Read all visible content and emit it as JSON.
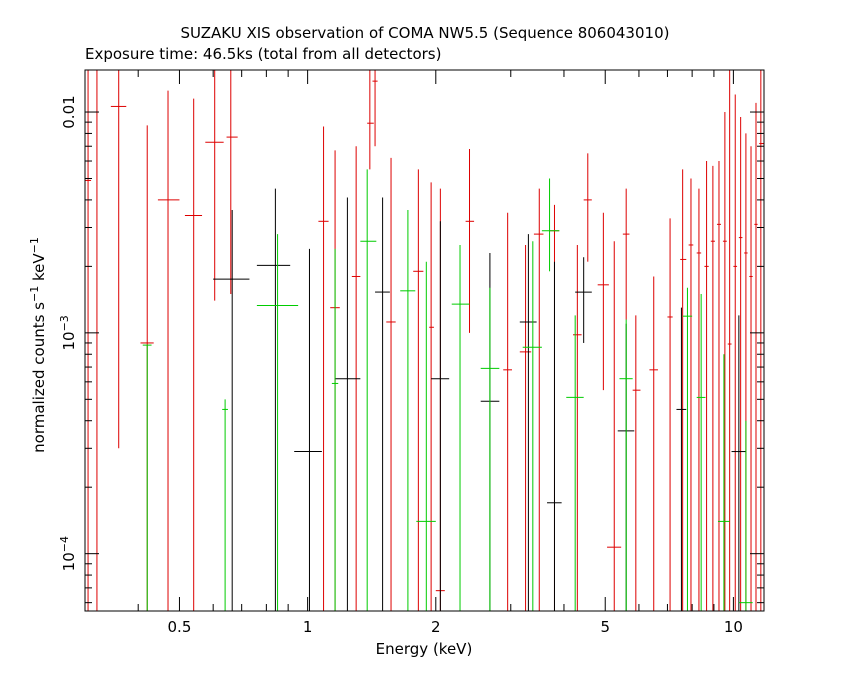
{
  "chart_data": {
    "type": "scatter",
    "title": "SUZAKU XIS observation of COMA NW5.5 (Sequence 806043010)",
    "subtitle": "Exposure time: 46.5ks (total from all detectors)",
    "xlabel": "Energy (keV)",
    "ylabel": "normalized counts s",
    "ylabel_sup1": "−1",
    "ylabel_mid": " keV",
    "ylabel_sup2": "−1",
    "x_scale": "log",
    "y_scale": "log",
    "xlim": [
      0.3,
      11.8
    ],
    "ylim": [
      5.5e-05,
      0.0155
    ],
    "x_ticks": [
      {
        "value": 0.5,
        "label": "0.5"
      },
      {
        "value": 1,
        "label": "1"
      },
      {
        "value": 2,
        "label": "2"
      },
      {
        "value": 5,
        "label": "5"
      },
      {
        "value": 10,
        "label": "10"
      }
    ],
    "y_ticks": [
      {
        "value": 0.0001,
        "label": "10",
        "sup": "−4"
      },
      {
        "value": 0.001,
        "label": "10",
        "sup": "−3"
      },
      {
        "value": 0.01,
        "label": "0.01",
        "sup": ""
      }
    ],
    "legend": "none",
    "grid": false,
    "series": [
      {
        "color": "#dd0000",
        "points": [
          {
            "x": 0.305,
            "xlo": 0.3,
            "xhi": 0.31,
            "y": 0.0049,
            "ylo": 5.5e-05,
            "yhi": 0.0155
          },
          {
            "x": 0.32,
            "xlo": 0.31,
            "xhi": 0.328,
            "y": 0.0155,
            "ylo": 5.5e-05,
            "yhi": 0.0155
          },
          {
            "x": 0.36,
            "xlo": 0.345,
            "xhi": 0.375,
            "y": 0.0106,
            "ylo": 0.0003,
            "yhi": 0.0155
          },
          {
            "x": 0.42,
            "xlo": 0.405,
            "xhi": 0.435,
            "y": 0.0009,
            "ylo": 5.5e-05,
            "yhi": 0.0087
          },
          {
            "x": 0.47,
            "xlo": 0.445,
            "xhi": 0.5,
            "y": 0.004,
            "ylo": 5.5e-05,
            "yhi": 0.0125
          },
          {
            "x": 0.54,
            "xlo": 0.515,
            "xhi": 0.565,
            "y": 0.0034,
            "ylo": 5.5e-05,
            "yhi": 0.0115
          },
          {
            "x": 0.605,
            "xlo": 0.575,
            "xhi": 0.635,
            "y": 0.0073,
            "ylo": 0.0014,
            "yhi": 0.0155
          },
          {
            "x": 0.66,
            "xlo": 0.645,
            "xhi": 0.685,
            "y": 0.0077,
            "ylo": 0.0015,
            "yhi": 0.0155
          },
          {
            "x": 1.09,
            "xlo": 1.06,
            "xhi": 1.12,
            "y": 0.0032,
            "ylo": 5.5e-05,
            "yhi": 0.0086
          },
          {
            "x": 1.16,
            "xlo": 1.13,
            "xhi": 1.19,
            "y": 0.0013,
            "ylo": 5.5e-05,
            "yhi": 0.0067
          },
          {
            "x": 1.3,
            "xlo": 1.27,
            "xhi": 1.33,
            "y": 0.0018,
            "ylo": 5.5e-05,
            "yhi": 0.007
          },
          {
            "x": 1.4,
            "xlo": 1.38,
            "xhi": 1.43,
            "y": 0.0089,
            "ylo": 0.0055,
            "yhi": 0.0155
          },
          {
            "x": 1.44,
            "xlo": 1.42,
            "xhi": 1.46,
            "y": 0.0138,
            "ylo": 0.007,
            "yhi": 0.0155
          },
          {
            "x": 1.57,
            "xlo": 1.53,
            "xhi": 1.61,
            "y": 0.00112,
            "ylo": 5.5e-05,
            "yhi": 0.0062
          },
          {
            "x": 1.82,
            "xlo": 1.77,
            "xhi": 1.87,
            "y": 0.0019,
            "ylo": 5.5e-05,
            "yhi": 0.0055
          },
          {
            "x": 1.95,
            "xlo": 1.93,
            "xhi": 1.98,
            "y": 0.00106,
            "ylo": 5.5e-05,
            "yhi": 0.0048
          },
          {
            "x": 2.05,
            "xlo": 2.0,
            "xhi": 2.1,
            "y": 6.8e-05,
            "ylo": 5.5e-05,
            "yhi": 0.0045
          },
          {
            "x": 2.4,
            "xlo": 2.35,
            "xhi": 2.46,
            "y": 0.0032,
            "ylo": 0.001,
            "yhi": 0.0068
          },
          {
            "x": 2.95,
            "xlo": 2.88,
            "xhi": 3.02,
            "y": 0.00068,
            "ylo": 5.5e-05,
            "yhi": 0.0035
          },
          {
            "x": 3.25,
            "xlo": 3.15,
            "xhi": 3.35,
            "y": 0.00082,
            "ylo": 5.5e-05,
            "yhi": 0.0025
          },
          {
            "x": 3.5,
            "xlo": 3.4,
            "xhi": 3.58,
            "y": 0.0028,
            "ylo": 5.5e-05,
            "yhi": 0.0045
          },
          {
            "x": 3.8,
            "xlo": 3.7,
            "xhi": 3.9,
            "y": 0.0029,
            "ylo": 5.5e-05,
            "yhi": 0.0038
          },
          {
            "x": 4.3,
            "xlo": 4.2,
            "xhi": 4.4,
            "y": 0.00098,
            "ylo": 5.5e-05,
            "yhi": 0.0025
          },
          {
            "x": 4.55,
            "xlo": 4.45,
            "xhi": 4.65,
            "y": 0.004,
            "ylo": 0.0021,
            "yhi": 0.0065
          },
          {
            "x": 4.95,
            "xlo": 4.8,
            "xhi": 5.1,
            "y": 0.00165,
            "ylo": 0.00055,
            "yhi": 0.0035
          },
          {
            "x": 5.25,
            "xlo": 5.05,
            "xhi": 5.45,
            "y": 0.000107,
            "ylo": 5.5e-05,
            "yhi": 0.0026
          },
          {
            "x": 5.6,
            "xlo": 5.5,
            "xhi": 5.7,
            "y": 0.0028,
            "ylo": 0.00115,
            "yhi": 0.0045
          },
          {
            "x": 5.9,
            "xlo": 5.8,
            "xhi": 6.05,
            "y": 0.00055,
            "ylo": 5.5e-05,
            "yhi": 0.0012
          },
          {
            "x": 6.5,
            "xlo": 6.35,
            "xhi": 6.65,
            "y": 0.00068,
            "ylo": 5.5e-05,
            "yhi": 0.0018
          },
          {
            "x": 7.1,
            "xlo": 7.0,
            "xhi": 7.2,
            "y": 0.00118,
            "ylo": 5.5e-05,
            "yhi": 0.0033
          },
          {
            "x": 7.6,
            "xlo": 7.5,
            "xhi": 7.75,
            "y": 0.00215,
            "ylo": 5.5e-05,
            "yhi": 0.0055
          },
          {
            "x": 7.95,
            "xlo": 7.85,
            "xhi": 8.05,
            "y": 0.0025,
            "ylo": 5.5e-05,
            "yhi": 0.005
          },
          {
            "x": 8.3,
            "xlo": 8.2,
            "xhi": 8.4,
            "y": 0.0023,
            "ylo": 5.5e-05,
            "yhi": 0.0045
          },
          {
            "x": 8.65,
            "xlo": 8.55,
            "xhi": 8.75,
            "y": 0.002,
            "ylo": 5.5e-05,
            "yhi": 0.006
          },
          {
            "x": 8.95,
            "xlo": 8.85,
            "xhi": 9.05,
            "y": 0.0026,
            "ylo": 5.5e-05,
            "yhi": 0.0057
          },
          {
            "x": 9.25,
            "xlo": 9.15,
            "xhi": 9.35,
            "y": 0.0031,
            "ylo": 5.5e-05,
            "yhi": 0.006
          },
          {
            "x": 9.55,
            "xlo": 9.45,
            "xhi": 9.65,
            "y": 0.0026,
            "ylo": 5.5e-05,
            "yhi": 0.01
          },
          {
            "x": 9.8,
            "xlo": 9.7,
            "xhi": 9.9,
            "y": 0.00089,
            "ylo": 5.5e-05,
            "yhi": 0.016
          },
          {
            "x": 10.1,
            "xlo": 10.0,
            "xhi": 10.2,
            "y": 0.002,
            "ylo": 5.5e-05,
            "yhi": 0.012
          },
          {
            "x": 10.4,
            "xlo": 10.3,
            "xhi": 10.5,
            "y": 0.0027,
            "ylo": 5.5e-05,
            "yhi": 0.0095
          },
          {
            "x": 10.7,
            "xlo": 10.6,
            "xhi": 10.8,
            "y": 0.0023,
            "ylo": 5.5e-05,
            "yhi": 0.008
          },
          {
            "x": 11.0,
            "xlo": 10.9,
            "xhi": 11.1,
            "y": 0.0018,
            "ylo": 5.5e-05,
            "yhi": 0.007
          },
          {
            "x": 11.3,
            "xlo": 11.2,
            "xhi": 11.4,
            "y": 0.0031,
            "ylo": 5.5e-05,
            "yhi": 0.011
          },
          {
            "x": 11.6,
            "xlo": 11.5,
            "xhi": 11.8,
            "y": 0.0072,
            "ylo": 5.5e-05,
            "yhi": 0.0155
          }
        ]
      },
      {
        "color": "#000000",
        "points": [
          {
            "x": 0.665,
            "xlo": 0.6,
            "xhi": 0.73,
            "y": 0.00175,
            "ylo": 5.5e-05,
            "yhi": 0.0036
          },
          {
            "x": 0.84,
            "xlo": 0.76,
            "xhi": 0.91,
            "y": 0.00202,
            "ylo": 5.5e-05,
            "yhi": 0.0045
          },
          {
            "x": 1.01,
            "xlo": 0.93,
            "xhi": 1.08,
            "y": 0.00029,
            "ylo": 5.5e-05,
            "yhi": 0.0024
          },
          {
            "x": 1.24,
            "xlo": 1.16,
            "xhi": 1.33,
            "y": 0.00062,
            "ylo": 5.5e-05,
            "yhi": 0.0041
          },
          {
            "x": 1.5,
            "xlo": 1.44,
            "xhi": 1.56,
            "y": 0.00153,
            "ylo": 5.5e-05,
            "yhi": 0.0041
          },
          {
            "x": 2.05,
            "xlo": 1.95,
            "xhi": 2.15,
            "y": 0.00062,
            "ylo": 5.5e-05,
            "yhi": 0.0032
          },
          {
            "x": 2.68,
            "xlo": 2.55,
            "xhi": 2.82,
            "y": 0.00049,
            "ylo": 5.5e-05,
            "yhi": 0.0023
          },
          {
            "x": 3.3,
            "xlo": 3.15,
            "xhi": 3.45,
            "y": 0.00112,
            "ylo": 5.5e-05,
            "yhi": 0.0028
          },
          {
            "x": 3.8,
            "xlo": 3.65,
            "xhi": 3.95,
            "y": 0.00017,
            "ylo": 5.5e-05,
            "yhi": 0.0021
          },
          {
            "x": 4.45,
            "xlo": 4.25,
            "xhi": 4.65,
            "y": 0.00153,
            "ylo": 0.0009,
            "yhi": 0.0022
          },
          {
            "x": 5.6,
            "xlo": 5.35,
            "xhi": 5.85,
            "y": 0.00036,
            "ylo": 5.5e-05,
            "yhi": 0.0011
          },
          {
            "x": 7.55,
            "xlo": 7.35,
            "xhi": 7.75,
            "y": 0.00045,
            "ylo": 5.5e-05,
            "yhi": 0.0013
          },
          {
            "x": 10.3,
            "xlo": 9.9,
            "xhi": 10.7,
            "y": 0.00029,
            "ylo": 5.5e-05,
            "yhi": 0.0012
          }
        ]
      },
      {
        "color": "#00cc00",
        "points": [
          {
            "x": 0.42,
            "xlo": 0.41,
            "xhi": 0.43,
            "y": 0.00088,
            "ylo": 5.5e-05,
            "yhi": 0.00088
          },
          {
            "x": 0.64,
            "xlo": 0.63,
            "xhi": 0.65,
            "y": 0.00045,
            "ylo": 5.5e-05,
            "yhi": 0.0005
          },
          {
            "x": 0.85,
            "xlo": 0.76,
            "xhi": 0.95,
            "y": 0.00133,
            "ylo": 5.5e-05,
            "yhi": 0.0028
          },
          {
            "x": 1.16,
            "xlo": 1.14,
            "xhi": 1.18,
            "y": 0.00059,
            "ylo": 5.5e-05,
            "yhi": 0.0024
          },
          {
            "x": 1.38,
            "xlo": 1.33,
            "xhi": 1.45,
            "y": 0.0026,
            "ylo": 5.5e-05,
            "yhi": 0.0055
          },
          {
            "x": 1.72,
            "xlo": 1.65,
            "xhi": 1.79,
            "y": 0.00155,
            "ylo": 5.5e-05,
            "yhi": 0.0036
          },
          {
            "x": 1.9,
            "xlo": 1.8,
            "xhi": 2.0,
            "y": 0.00014,
            "ylo": 5.5e-05,
            "yhi": 0.0021
          },
          {
            "x": 2.28,
            "xlo": 2.18,
            "xhi": 2.4,
            "y": 0.00135,
            "ylo": 5.5e-05,
            "yhi": 0.0025
          },
          {
            "x": 2.68,
            "xlo": 2.55,
            "xhi": 2.82,
            "y": 0.00069,
            "ylo": 5.5e-05,
            "yhi": 0.0016
          },
          {
            "x": 3.38,
            "xlo": 3.2,
            "xhi": 3.55,
            "y": 0.00086,
            "ylo": 5.5e-05,
            "yhi": 0.0026
          },
          {
            "x": 3.7,
            "xlo": 3.55,
            "xhi": 3.9,
            "y": 0.0029,
            "ylo": 0.0019,
            "yhi": 0.005
          },
          {
            "x": 4.25,
            "xlo": 4.05,
            "xhi": 4.45,
            "y": 0.00051,
            "ylo": 5.5e-05,
            "yhi": 0.0012
          },
          {
            "x": 5.6,
            "xlo": 5.4,
            "xhi": 5.8,
            "y": 0.00062,
            "ylo": 5.5e-05,
            "yhi": 0.00115
          },
          {
            "x": 7.8,
            "xlo": 7.6,
            "xhi": 8.0,
            "y": 0.00119,
            "ylo": 5.5e-05,
            "yhi": 0.0016
          },
          {
            "x": 8.4,
            "xlo": 8.2,
            "xhi": 8.6,
            "y": 0.00051,
            "ylo": 5.5e-05,
            "yhi": 0.0015
          },
          {
            "x": 9.5,
            "xlo": 9.2,
            "xhi": 9.8,
            "y": 0.00014,
            "ylo": 5.5e-05,
            "yhi": 0.0008
          },
          {
            "x": 10.7,
            "xlo": 10.3,
            "xhi": 11.1,
            "y": 6e-05,
            "ylo": 5.5e-05,
            "yhi": 0.0004
          }
        ]
      }
    ]
  }
}
